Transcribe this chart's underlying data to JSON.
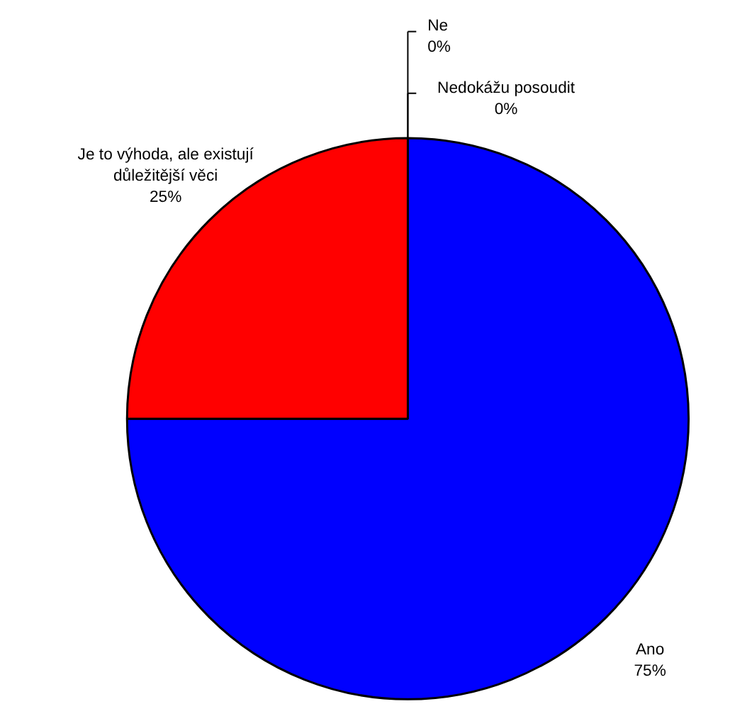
{
  "chart_data": {
    "type": "pie",
    "categories": [
      "Ano",
      "Je to výhoda, ale existují důležitější věci",
      "Ne",
      "Nedokážu posoudit"
    ],
    "values": [
      75,
      25,
      0,
      0
    ],
    "value_labels": [
      "75%",
      "25%",
      "0%",
      "0%"
    ],
    "colors": [
      "#0000ff",
      "#ff0000",
      "#ffff00",
      "#00ff00"
    ]
  }
}
